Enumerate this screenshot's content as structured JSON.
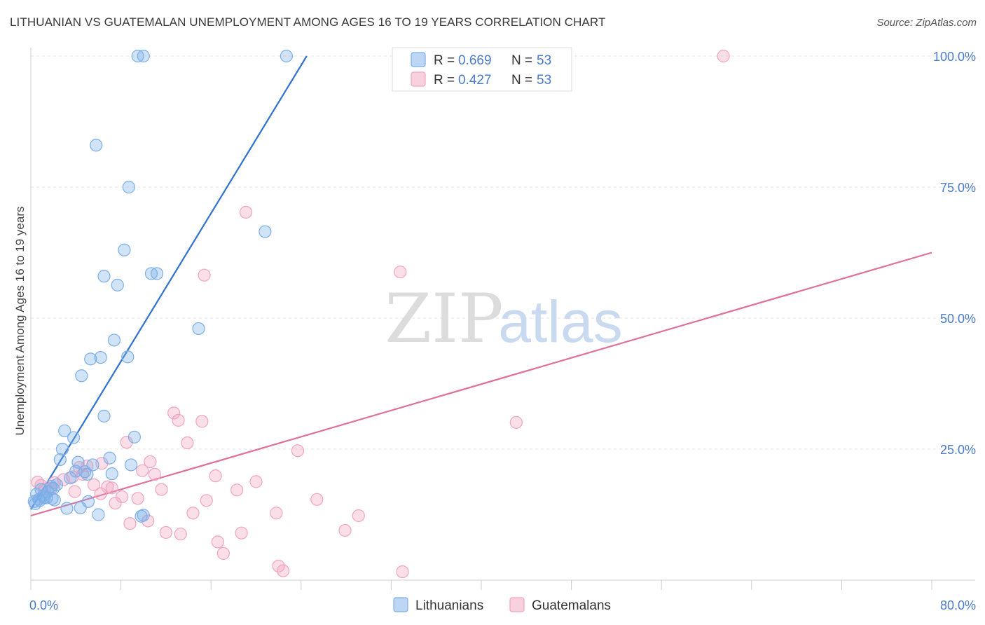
{
  "title": "LITHUANIAN VS GUATEMALAN UNEMPLOYMENT AMONG AGES 16 TO 19 YEARS CORRELATION CHART",
  "source": "Source: ZipAtlas.com",
  "watermark": {
    "part1": "ZIP",
    "part2": "atlas"
  },
  "chart_data": {
    "type": "scatter",
    "xlabel": "",
    "ylabel": "Unemployment Among Ages 16 to 19 years",
    "xlim": [
      0,
      80
    ],
    "ylim": [
      0,
      100
    ],
    "x_tick_labels": {
      "min": "0.0%",
      "max": "80.0%"
    },
    "y_ticks": [
      25,
      50,
      75,
      100
    ],
    "y_tick_labels": [
      "25.0%",
      "50.0%",
      "75.0%",
      "100.0%"
    ],
    "grid": true,
    "legend": {
      "placement": "top-center",
      "rows": [
        {
          "r_label": "R =",
          "r_value": "0.669",
          "n_label": "N =",
          "n_value": "53"
        },
        {
          "r_label": "R =",
          "r_value": "0.427",
          "n_label": "N =",
          "n_value": "53"
        }
      ]
    },
    "series": [
      {
        "name": "Lithuanians",
        "color": "#7baee8",
        "line_color": "#2f72cf",
        "trend": {
          "x0": 0,
          "y0": 13.5,
          "x1": 24.5,
          "y1": 100
        },
        "points": [
          [
            9.5,
            100
          ],
          [
            10,
            100
          ],
          [
            22.7,
            100
          ],
          [
            5.8,
            83
          ],
          [
            8.7,
            75
          ],
          [
            20.8,
            66.5
          ],
          [
            8.3,
            63
          ],
          [
            6.5,
            58
          ],
          [
            10.7,
            58.5
          ],
          [
            11.2,
            58.5
          ],
          [
            7.7,
            56.3
          ],
          [
            14.9,
            48
          ],
          [
            7.4,
            45.8
          ],
          [
            6.2,
            42.5
          ],
          [
            8.6,
            42.6
          ],
          [
            5.3,
            42.2
          ],
          [
            4.5,
            39
          ],
          [
            6.5,
            31.3
          ],
          [
            3.0,
            28.5
          ],
          [
            9.2,
            27.3
          ],
          [
            3.8,
            27.2
          ],
          [
            2.8,
            25
          ],
          [
            7.0,
            23.3
          ],
          [
            2.6,
            23
          ],
          [
            4.2,
            22.5
          ],
          [
            5.5,
            22
          ],
          [
            8.9,
            22
          ],
          [
            4.0,
            20.8
          ],
          [
            7.2,
            20.3
          ],
          [
            5.0,
            20.2
          ],
          [
            3.5,
            19.5
          ],
          [
            4.8,
            20.7
          ],
          [
            2.3,
            18.2
          ],
          [
            1.8,
            17.9
          ],
          [
            2.0,
            17.5
          ],
          [
            0.9,
            17.3
          ],
          [
            1.5,
            16.9
          ],
          [
            0.5,
            16.4
          ],
          [
            1.1,
            16.1
          ],
          [
            1.4,
            15.7
          ],
          [
            0.7,
            15.4
          ],
          [
            1.9,
            15.6
          ],
          [
            0.3,
            15.0
          ],
          [
            0.8,
            15.2
          ],
          [
            1.2,
            15.8
          ],
          [
            2.1,
            15.3
          ],
          [
            5.1,
            15.0
          ],
          [
            4.4,
            13.8
          ],
          [
            3.2,
            13.7
          ],
          [
            6.0,
            12.5
          ],
          [
            9.8,
            12.2
          ],
          [
            10.0,
            12.4
          ],
          [
            0.4,
            14.6
          ]
        ]
      },
      {
        "name": "Guatemalans",
        "color": "#f2a3bf",
        "line_color": "#e0709a",
        "trend": {
          "x0": 0,
          "y0": 12.3,
          "x1": 80,
          "y1": 62.5
        },
        "points": [
          [
            61.5,
            100
          ],
          [
            19.1,
            70.2
          ],
          [
            32.8,
            58.8
          ],
          [
            15.4,
            58.2
          ],
          [
            43.1,
            30.1
          ],
          [
            12.7,
            31.9
          ],
          [
            13.1,
            30.5
          ],
          [
            15.2,
            30.3
          ],
          [
            8.5,
            26.3
          ],
          [
            13.9,
            26.2
          ],
          [
            23.7,
            24.7
          ],
          [
            6.3,
            22.3
          ],
          [
            5.0,
            21.8
          ],
          [
            10.6,
            22.6
          ],
          [
            9.9,
            20.9
          ],
          [
            11.0,
            20.2
          ],
          [
            16.4,
            19.9
          ],
          [
            4.6,
            20.2
          ],
          [
            3.7,
            19.7
          ],
          [
            20.0,
            18.8
          ],
          [
            2.9,
            19.2
          ],
          [
            2.1,
            18.6
          ],
          [
            0.6,
            18.7
          ],
          [
            5.6,
            18.2
          ],
          [
            6.8,
            17.8
          ],
          [
            7.2,
            17.6
          ],
          [
            1.2,
            17.4
          ],
          [
            11.6,
            17.3
          ],
          [
            18.3,
            17.2
          ],
          [
            3.9,
            16.9
          ],
          [
            6.2,
            16.5
          ],
          [
            8.1,
            15.9
          ],
          [
            9.5,
            15.6
          ],
          [
            15.6,
            15.2
          ],
          [
            25.4,
            15.4
          ],
          [
            7.5,
            14.7
          ],
          [
            14.4,
            12.8
          ],
          [
            21.8,
            12.8
          ],
          [
            29.1,
            12.3
          ],
          [
            8.8,
            10.8
          ],
          [
            10.4,
            11.3
          ],
          [
            12.0,
            9.1
          ],
          [
            13.3,
            8.8
          ],
          [
            18.7,
            9.0
          ],
          [
            27.9,
            9.5
          ],
          [
            16.6,
            7.3
          ],
          [
            17.1,
            5.1
          ],
          [
            22.0,
            2.7
          ],
          [
            22.4,
            1.8
          ],
          [
            33.0,
            1.6
          ],
          [
            1.8,
            17.5
          ],
          [
            0.9,
            18.1
          ],
          [
            4.3,
            21.5
          ]
        ]
      }
    ]
  }
}
